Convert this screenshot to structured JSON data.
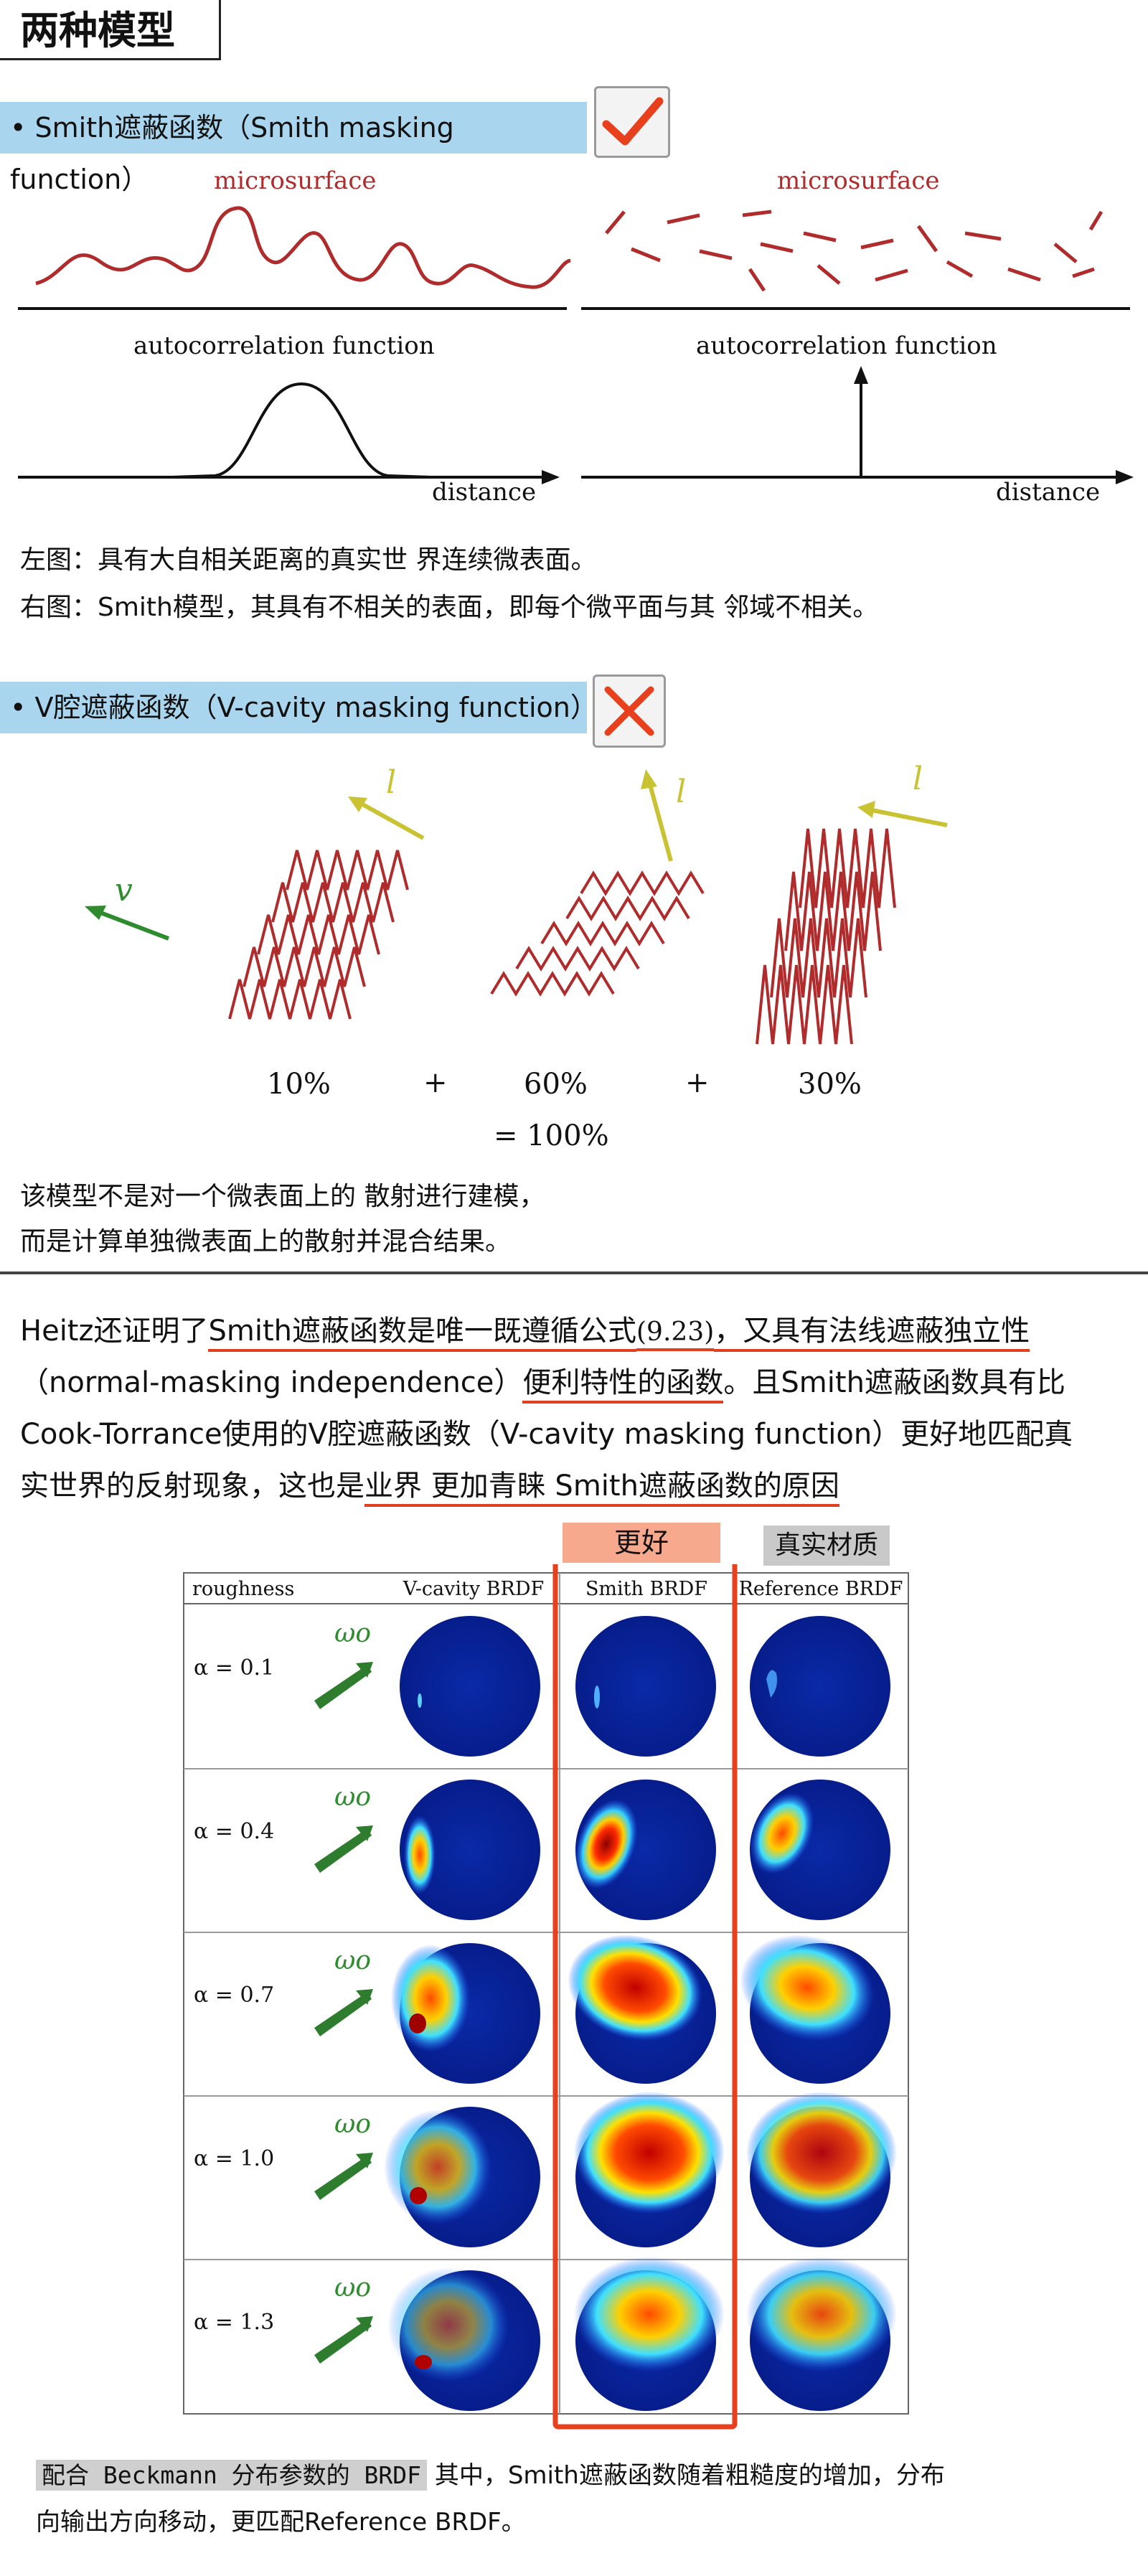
{
  "title": "两种模型",
  "smith": {
    "banner": "• Smith遮蔽函数（Smith masking function）",
    "micro_left": "microsurface",
    "micro_right": "microsurface",
    "auto_left": "autocorrelation function",
    "auto_right": "autocorrelation function",
    "dist_left": "distance",
    "dist_right": "distance",
    "caption_1": "左图：具有大自相关距离的真实世 界连续微表面。",
    "caption_2": "右图：Smith模型，其具有不相关的表面，即每个微平面与其 邻域不相关。",
    "check_icon": "check-icon"
  },
  "vcavity": {
    "banner": "• V腔遮蔽函数（V-cavity masking function）",
    "v_label": "v",
    "l_label_1": "l",
    "l_label_2": "l",
    "l_label_3": "l",
    "pct_1": "10%",
    "plus_1": "+",
    "pct_2": "60%",
    "plus_2": "+",
    "pct_3": "30%",
    "total": "= 100%",
    "caption_1": "该模型不是对一个微表面上的 散射进行建模，",
    "caption_2": "而是计算单独微表面上的散射并混合结果。",
    "cross_icon": "cross-icon"
  },
  "paragraph": {
    "l1a": "Heitz还证明了",
    "l1b": "Smith遮蔽函数是唯一既遵循公式",
    "l1c": "(9.23)",
    "l1d": "，又具有法线遮蔽独立性",
    "l2a": "（normal-masking independence）",
    "l2b": "便利特性的函数",
    "l2c": "。且Smith遮蔽函数具有比",
    "l3": "Cook-Torrance使用的V腔遮蔽函数（V-cavity masking function）更好地匹配真",
    "l4a": "实世界的反射现象，这也是",
    "l4b": "业界 更加青睐 Smith遮蔽函数的原因"
  },
  "table": {
    "tag_better": "更好",
    "tag_real": "真实材质",
    "headers": [
      "roughness",
      "V-cavity BRDF",
      "Smith BRDF",
      "Reference BRDF"
    ],
    "rows": [
      {
        "alpha": "α = 0.1",
        "omega": "ωo"
      },
      {
        "alpha": "α = 0.4",
        "omega": "ωo"
      },
      {
        "alpha": "α = 0.7",
        "omega": "ωo"
      },
      {
        "alpha": "α = 1.0",
        "omega": "ωo"
      },
      {
        "alpha": "α = 1.3",
        "omega": "ωo"
      }
    ],
    "highlight_color": "#e8401c"
  },
  "footer": {
    "code": "配合 Beckmann 分布参数的 BRDF",
    "text_1": " 其中，Smith遮蔽函数随着粗糙度的增加，分布",
    "text_2": "向输出方向移动，更匹配Reference BRDF。"
  }
}
